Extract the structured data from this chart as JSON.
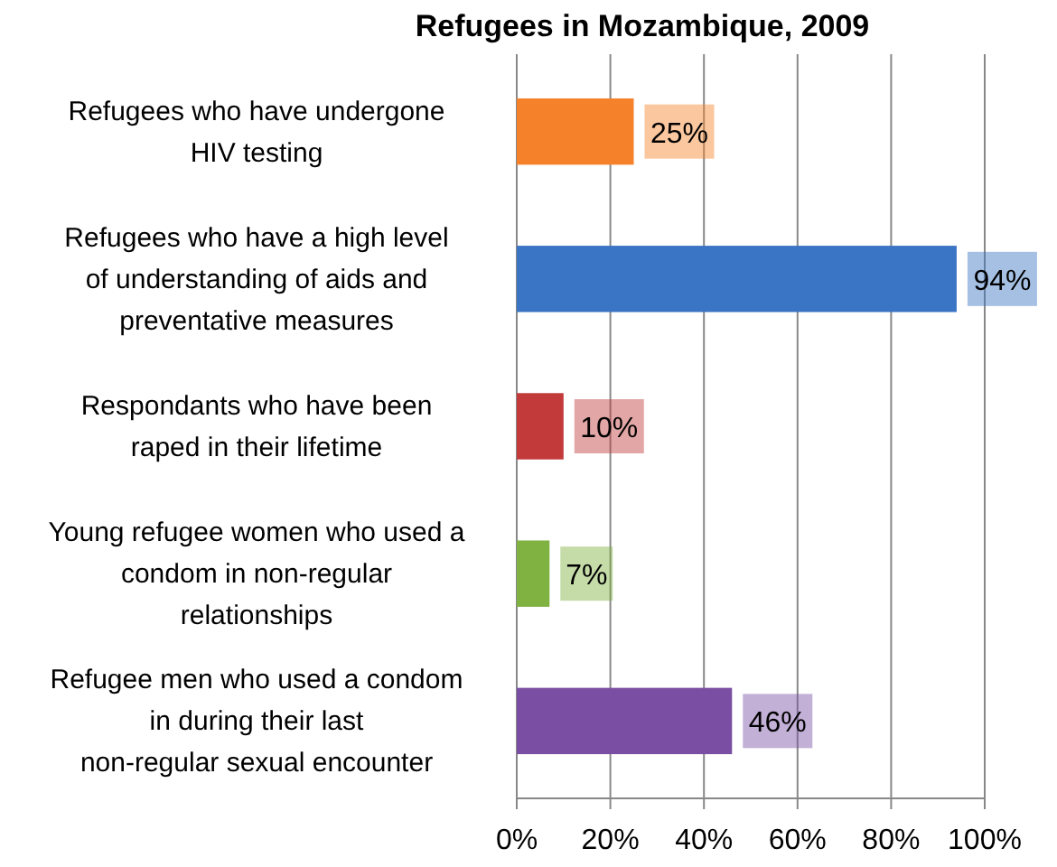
{
  "chart_data": {
    "type": "bar",
    "orientation": "horizontal",
    "title": "Refugees in Mozambique, 2009",
    "categories": [
      "Refugees who have undergone HIV testing",
      "Refugees who have a high level of understanding of aids and preventative measures",
      "Respondants who have been raped in their lifetime",
      "Young refugee women who used a condom in non-regular relationships",
      "Refugee men who used a condom in during their last non-regular sexual encounter"
    ],
    "values": [
      25,
      94,
      10,
      7,
      46
    ],
    "colors": [
      "#f5822a",
      "#3a74c4",
      "#c23a3a",
      "#7fb241",
      "#7a4fa3"
    ],
    "value_labels": [
      "25%",
      "94%",
      "10%",
      "7%",
      "46%"
    ],
    "xlim": [
      0,
      100
    ],
    "xticks": [
      {
        "value": 0,
        "label": "0%"
      },
      {
        "value": 20,
        "label": "20%"
      },
      {
        "value": 40,
        "label": "40%"
      },
      {
        "value": 60,
        "label": "60%"
      },
      {
        "value": 80,
        "label": "80%"
      },
      {
        "value": 100,
        "label": "100%"
      }
    ],
    "grid": "x"
  }
}
